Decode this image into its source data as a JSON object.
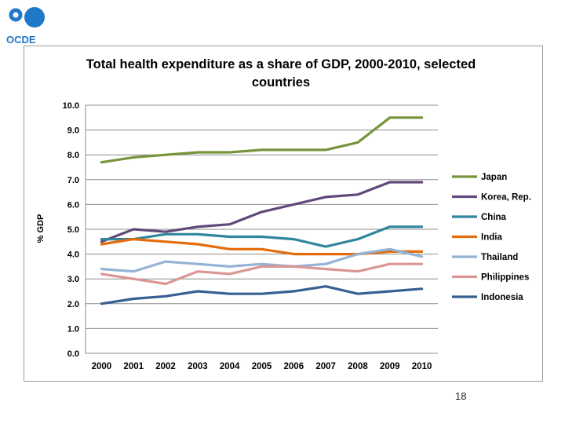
{
  "logo": {
    "text": "OCDE",
    "color": "#1f78c8"
  },
  "page_number": "18",
  "chart_data": {
    "type": "line",
    "title": "Total health expenditure as a share of GDP, 2000-2010, selected countries",
    "title_lines": [
      "Total health expenditure as a share of GDP, 2000-2010, selected",
      "countries"
    ],
    "xlabel": "",
    "ylabel": "% GDP",
    "ylim": [
      0,
      10
    ],
    "ytick_step": 1,
    "ytick_labels": [
      "0.0",
      "1.0",
      "2.0",
      "3.0",
      "4.0",
      "5.0",
      "6.0",
      "7.0",
      "8.0",
      "9.0",
      "10.0"
    ],
    "grid": true,
    "legend_position": "right",
    "categories": [
      "2000",
      "2001",
      "2002",
      "2003",
      "2004",
      "2005",
      "2006",
      "2007",
      "2008",
      "2009",
      "2010"
    ],
    "series": [
      {
        "name": "Japan",
        "color": "#77933c",
        "values": [
          7.7,
          7.9,
          8.0,
          8.1,
          8.1,
          8.2,
          8.2,
          8.2,
          8.5,
          9.5,
          9.5
        ]
      },
      {
        "name": "Korea, Rep.",
        "color": "#60497a",
        "values": [
          4.5,
          5.0,
          4.9,
          5.1,
          5.2,
          5.7,
          6.0,
          6.3,
          6.4,
          6.9,
          6.9
        ]
      },
      {
        "name": "China",
        "color": "#31859c",
        "values": [
          4.6,
          4.6,
          4.8,
          4.8,
          4.7,
          4.7,
          4.6,
          4.3,
          4.6,
          5.1,
          5.1
        ]
      },
      {
        "name": "India",
        "color": "#e46c0a",
        "values": [
          4.4,
          4.6,
          4.5,
          4.4,
          4.2,
          4.2,
          4.0,
          4.0,
          4.0,
          4.1,
          4.1
        ]
      },
      {
        "name": "Thailand",
        "color": "#95b3d7",
        "values": [
          3.4,
          3.3,
          3.7,
          3.6,
          3.5,
          3.6,
          3.5,
          3.6,
          4.0,
          4.2,
          3.9
        ]
      },
      {
        "name": "Philippines",
        "color": "#d99694",
        "values": [
          3.2,
          3.0,
          2.8,
          3.3,
          3.2,
          3.5,
          3.5,
          3.4,
          3.3,
          3.6,
          3.6
        ]
      },
      {
        "name": "Indonesia",
        "color": "#376092",
        "values": [
          2.0,
          2.2,
          2.3,
          2.5,
          2.4,
          2.4,
          2.5,
          2.7,
          2.4,
          2.5,
          2.6
        ]
      }
    ]
  }
}
